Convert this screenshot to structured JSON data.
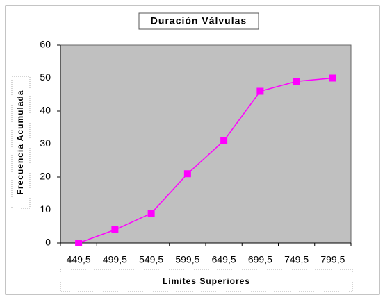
{
  "chart_data": {
    "type": "line",
    "title": "Duración Válvulas",
    "x_label": "Límites Superiores",
    "y_label": "Frecuencia Acumulada",
    "categories": [
      "449,5",
      "499,5",
      "549,5",
      "599,5",
      "649,5",
      "699,5",
      "749,5",
      "799,5"
    ],
    "series": [
      {
        "name": "Frecuencia Acumulada",
        "color": "#ff00ff",
        "values": [
          0,
          4,
          9,
          21,
          31,
          46,
          49,
          50
        ]
      }
    ],
    "ylim": [
      0,
      60
    ],
    "yticks": [
      0,
      10,
      20,
      30,
      40,
      50,
      60
    ],
    "plot_background": "#c0c0c0"
  }
}
